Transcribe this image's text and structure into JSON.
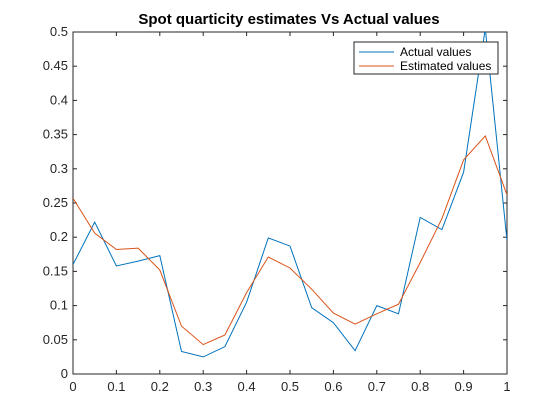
{
  "chart_data": {
    "type": "line",
    "title": "Spot quarticity estimates Vs Actual values",
    "xlabel": "",
    "ylabel": "",
    "xlim": [
      0,
      1
    ],
    "ylim": [
      0,
      0.5
    ],
    "x_ticks": [
      "0",
      "0.1",
      "0.2",
      "0.3",
      "0.4",
      "0.5",
      "0.6",
      "0.7",
      "0.8",
      "0.9",
      "1"
    ],
    "y_ticks": [
      "0",
      "0.05",
      "0.1",
      "0.15",
      "0.2",
      "0.25",
      "0.3",
      "0.35",
      "0.4",
      "0.45",
      "0.5"
    ],
    "grid": false,
    "legend_position": "top-right",
    "x": [
      0,
      0.05,
      0.1,
      0.15,
      0.2,
      0.25,
      0.3,
      0.35,
      0.4,
      0.45,
      0.5,
      0.55,
      0.6,
      0.65,
      0.7,
      0.75,
      0.8,
      0.85,
      0.9,
      0.95,
      1
    ],
    "series": [
      {
        "name": "Actual values",
        "color": "#0072BD",
        "values": [
          0.16,
          0.222,
          0.158,
          0.165,
          0.173,
          0.033,
          0.025,
          0.04,
          0.105,
          0.199,
          0.187,
          0.097,
          0.075,
          0.034,
          0.1,
          0.088,
          0.229,
          0.211,
          0.295,
          0.505,
          0.195
        ]
      },
      {
        "name": "Estimated values",
        "color": "#D95319",
        "values": [
          0.257,
          0.206,
          0.182,
          0.184,
          0.152,
          0.07,
          0.043,
          0.057,
          0.119,
          0.171,
          0.155,
          0.124,
          0.089,
          0.073,
          0.088,
          0.102,
          0.163,
          0.227,
          0.313,
          0.348,
          0.262
        ]
      }
    ]
  }
}
